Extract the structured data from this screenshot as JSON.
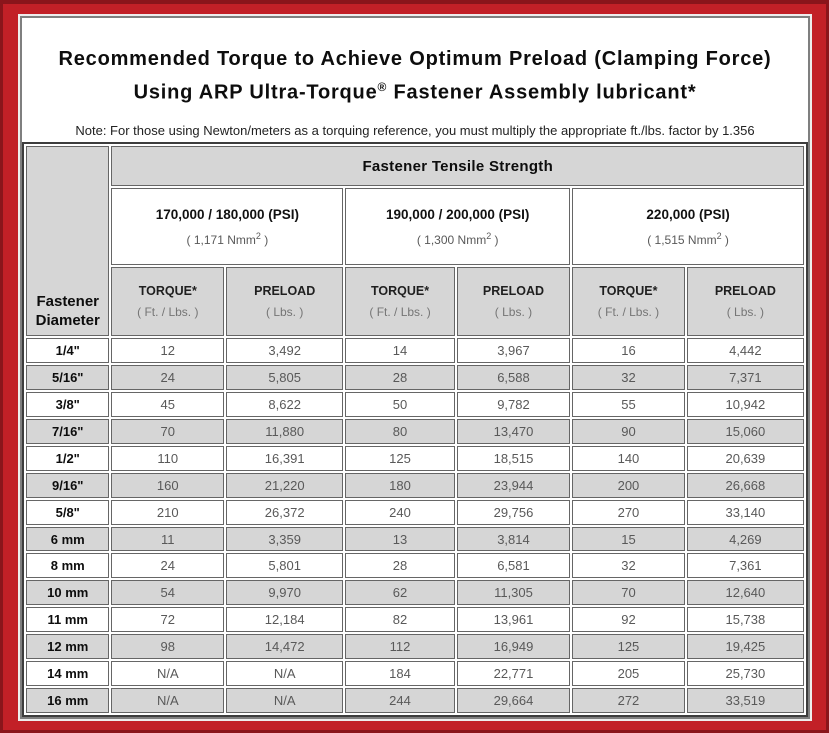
{
  "colors": {
    "frame_red": "#c22027",
    "frame_dark_red": "#8a151b",
    "cell_gray": "#d6d6d6",
    "border_gray": "#666666",
    "data_text_gray": "#595959"
  },
  "title": {
    "line1": "Recommended Torque to Achieve Optimum Preload (Clamping Force)",
    "line2_before_reg": "Using ARP Ultra-Torque",
    "line2_reg": "®",
    "line2_after_reg": " Fastener Assembly lubricant*",
    "note": "Note: For those using Newton/meters as a torquing reference, you must multiply the appropriate ft./lbs. factor by 1.356"
  },
  "table": {
    "corner_header_line1": "Fastener",
    "corner_header_line2": "Diameter",
    "main_header": "Fastener Tensile Strength",
    "groups": [
      {
        "psi": "170,000 / 180,000 (PSI)",
        "nmm_open": "( 1,171 Nmm",
        "nmm_sup": "2",
        "nmm_close": " )"
      },
      {
        "psi": "190,000 / 200,000 (PSI)",
        "nmm_open": "( 1,300 Nmm",
        "nmm_sup": "2",
        "nmm_close": " )"
      },
      {
        "psi": "220,000 (PSI)",
        "nmm_open": "( 1,515 Nmm",
        "nmm_sup": "2",
        "nmm_close": " )"
      }
    ],
    "subheaders": {
      "torque_label": "TORQUE*",
      "torque_unit": "( Ft. / Lbs. )",
      "preload_label": "PRELOAD",
      "preload_unit": "( Lbs. )"
    },
    "rows": [
      {
        "diameter": "1/4\"",
        "values": [
          "12",
          "3,492",
          "14",
          "3,967",
          "16",
          "4,442"
        ]
      },
      {
        "diameter": "5/16\"",
        "values": [
          "24",
          "5,805",
          "28",
          "6,588",
          "32",
          "7,371"
        ]
      },
      {
        "diameter": "3/8\"",
        "values": [
          "45",
          "8,622",
          "50",
          "9,782",
          "55",
          "10,942"
        ]
      },
      {
        "diameter": "7/16\"",
        "values": [
          "70",
          "11,880",
          "80",
          "13,470",
          "90",
          "15,060"
        ]
      },
      {
        "diameter": "1/2\"",
        "values": [
          "110",
          "16,391",
          "125",
          "18,515",
          "140",
          "20,639"
        ]
      },
      {
        "diameter": "9/16\"",
        "values": [
          "160",
          "21,220",
          "180",
          "23,944",
          "200",
          "26,668"
        ]
      },
      {
        "diameter": "5/8\"",
        "values": [
          "210",
          "26,372",
          "240",
          "29,756",
          "270",
          "33,140"
        ]
      },
      {
        "diameter": "6 mm",
        "values": [
          "11",
          "3,359",
          "13",
          "3,814",
          "15",
          "4,269"
        ]
      },
      {
        "diameter": "8 mm",
        "values": [
          "24",
          "5,801",
          "28",
          "6,581",
          "32",
          "7,361"
        ]
      },
      {
        "diameter": "10 mm",
        "values": [
          "54",
          "9,970",
          "62",
          "11,305",
          "70",
          "12,640"
        ]
      },
      {
        "diameter": "11 mm",
        "values": [
          "72",
          "12,184",
          "82",
          "13,961",
          "92",
          "15,738"
        ]
      },
      {
        "diameter": "12 mm",
        "values": [
          "98",
          "14,472",
          "112",
          "16,949",
          "125",
          "19,425"
        ]
      },
      {
        "diameter": "14 mm",
        "values": [
          "N/A",
          "N/A",
          "184",
          "22,771",
          "205",
          "25,730"
        ]
      },
      {
        "diameter": "16 mm",
        "values": [
          "N/A",
          "N/A",
          "244",
          "29,664",
          "272",
          "33,519"
        ]
      }
    ]
  }
}
